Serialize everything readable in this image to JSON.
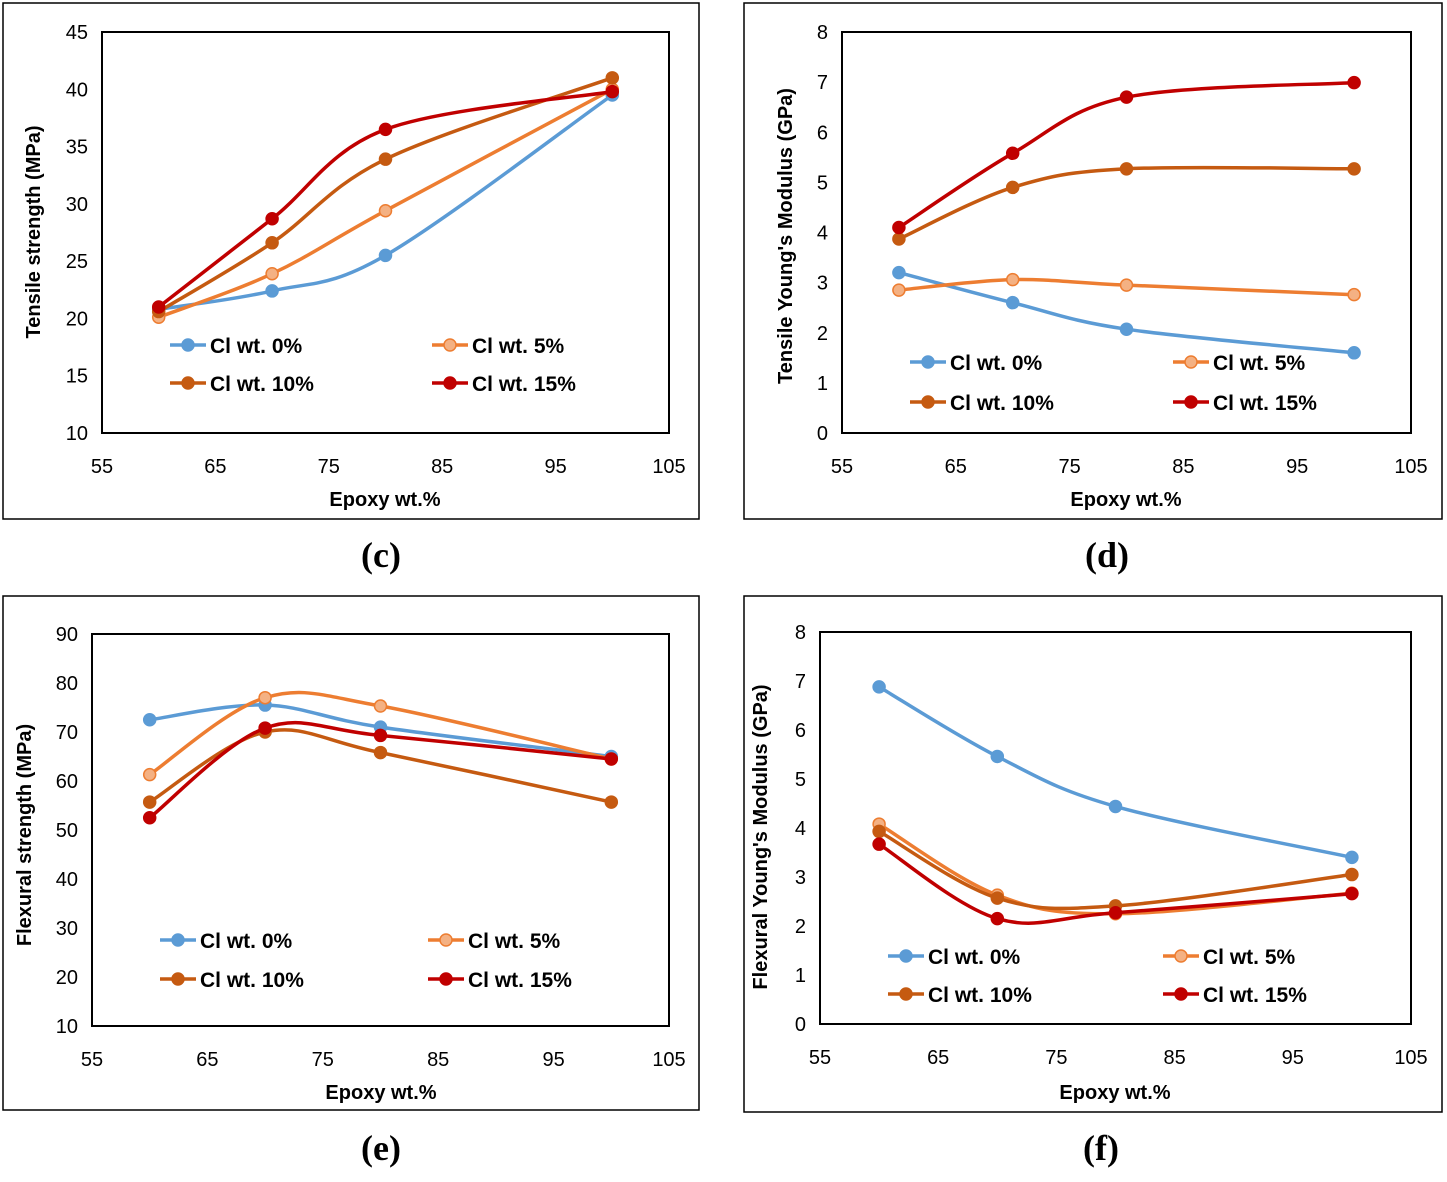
{
  "colors": {
    "Cl wt. 0%": "#5b9bd5",
    "Cl wt. 5%": "#ed7d31",
    "Cl wt. 10%": "#c55a11",
    "Cl wt. 15%": "#c00000",
    "marker_5pct_fill": "#f4b183"
  },
  "chart_data": [
    {
      "type": "line",
      "panel_label": "(c)",
      "xlabel": "Epoxy wt.%",
      "ylabel": "Tensile strength (MPa)",
      "xlim": [
        55,
        105
      ],
      "ylim": [
        10,
        45
      ],
      "xticks": [
        "55",
        "65",
        "75",
        "85",
        "95",
        "105"
      ],
      "yticks": [
        "10",
        "15",
        "20",
        "25",
        "30",
        "35",
        "40",
        "45"
      ],
      "x": [
        60,
        70,
        80,
        100
      ],
      "series": [
        {
          "name": "Cl wt. 0%",
          "values": [
            20.8,
            22.4,
            25.5,
            39.5
          ]
        },
        {
          "name": "Cl wt. 5%",
          "values": [
            20.1,
            23.9,
            29.4,
            40.0
          ]
        },
        {
          "name": "Cl wt. 10%",
          "values": [
            20.6,
            26.6,
            33.9,
            41.0
          ]
        },
        {
          "name": "Cl wt. 15%",
          "values": [
            21.0,
            28.7,
            36.5,
            39.8
          ]
        }
      ],
      "legend": "bottom"
    },
    {
      "type": "line",
      "panel_label": "(d)",
      "xlabel": "Epoxy wt.%",
      "ylabel": "Tensile Young's Modulus (GPa)",
      "xlim": [
        55,
        105
      ],
      "ylim": [
        0,
        8
      ],
      "xticks": [
        "55",
        "65",
        "75",
        "85",
        "95",
        "105"
      ],
      "yticks": [
        "0",
        "1",
        "2",
        "3",
        "4",
        "5",
        "6",
        "7",
        "8"
      ],
      "x": [
        60,
        70,
        80,
        100
      ],
      "series": [
        {
          "name": "Cl wt. 0%",
          "values": [
            3.2,
            2.6,
            2.07,
            1.6
          ]
        },
        {
          "name": "Cl wt. 5%",
          "values": [
            2.85,
            3.06,
            2.95,
            2.76
          ]
        },
        {
          "name": "Cl wt. 10%",
          "values": [
            3.87,
            4.9,
            5.27,
            5.27
          ]
        },
        {
          "name": "Cl wt. 15%",
          "values": [
            4.1,
            5.58,
            6.7,
            6.99
          ]
        }
      ],
      "legend": "bottom"
    },
    {
      "type": "line",
      "panel_label": "(e)",
      "xlabel": "Epoxy wt.%",
      "ylabel": "Flexural strength (MPa)",
      "xlim": [
        55,
        105
      ],
      "ylim": [
        10,
        90
      ],
      "xticks": [
        "55",
        "65",
        "75",
        "85",
        "95",
        "105"
      ],
      "yticks": [
        "10",
        "20",
        "30",
        "40",
        "50",
        "60",
        "70",
        "80",
        "90"
      ],
      "x": [
        60,
        70,
        80,
        100
      ],
      "series": [
        {
          "name": "Cl wt. 0%",
          "values": [
            72.5,
            75.5,
            71.0,
            65.0
          ]
        },
        {
          "name": "Cl wt. 5%",
          "values": [
            61.3,
            77.0,
            75.3,
            64.5
          ]
        },
        {
          "name": "Cl wt. 10%",
          "values": [
            55.7,
            70.0,
            65.8,
            55.7
          ]
        },
        {
          "name": "Cl wt. 15%",
          "values": [
            52.5,
            70.8,
            69.3,
            64.5
          ]
        }
      ],
      "legend": "bottom"
    },
    {
      "type": "line",
      "panel_label": "(f)",
      "xlabel": "Epoxy wt.%",
      "ylabel": "Flexural Young's Modulus (GPa)",
      "xlim": [
        55,
        105
      ],
      "ylim": [
        0,
        8
      ],
      "xticks": [
        "55",
        "65",
        "75",
        "85",
        "95",
        "105"
      ],
      "yticks": [
        "0",
        "1",
        "2",
        "3",
        "4",
        "5",
        "6",
        "7",
        "8"
      ],
      "x": [
        60,
        70,
        80,
        100
      ],
      "series": [
        {
          "name": "Cl wt. 0%",
          "values": [
            6.88,
            5.46,
            4.44,
            3.4
          ]
        },
        {
          "name": "Cl wt. 5%",
          "values": [
            4.08,
            2.63,
            2.25,
            2.67
          ]
        },
        {
          "name": "Cl wt. 10%",
          "values": [
            3.93,
            2.57,
            2.41,
            3.05
          ]
        },
        {
          "name": "Cl wt. 15%",
          "values": [
            3.67,
            2.15,
            2.27,
            2.66
          ]
        }
      ],
      "legend": "bottom"
    }
  ]
}
